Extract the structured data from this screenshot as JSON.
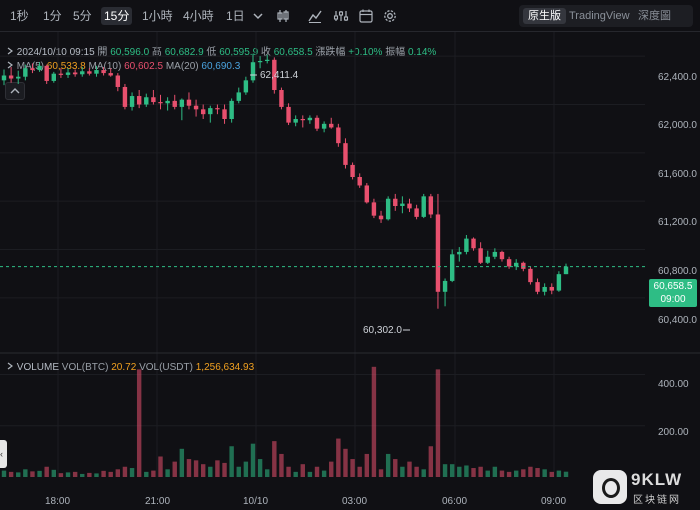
{
  "toolbar": {
    "timeframes": [
      {
        "label": "1秒",
        "active": false
      },
      {
        "label": "1分",
        "active": false
      },
      {
        "label": "5分",
        "active": false
      },
      {
        "label": "15分",
        "active": true
      },
      {
        "label": "1小時",
        "active": false
      },
      {
        "label": "4小時",
        "active": false
      },
      {
        "label": "1日",
        "active": false
      }
    ],
    "tools": [
      "chevron-down-icon",
      "candlestick-type-icon",
      "indicator-icon",
      "settings-sliders-icon",
      "calendar-icon",
      "gear-icon"
    ],
    "views": [
      {
        "label": "原生版",
        "active": true
      },
      {
        "label": "TradingView",
        "active": false
      },
      {
        "label": "深度圖",
        "active": false
      }
    ]
  },
  "info": {
    "datetime": "2024/10/10 09:15",
    "open_label": "開",
    "open": "60,596.0",
    "high_label": "高",
    "high": "60,682.9",
    "low_label": "低",
    "low": "60,595.9",
    "close_label": "收",
    "close": "60,658.5",
    "change_label": "漲跌幅",
    "change": "+0.10%",
    "amplitude_label": "振幅",
    "amplitude": "0.14%"
  },
  "ma": {
    "ma5_label": "MA(5)",
    "ma5": "60,533.8",
    "ma10_label": "MA(10)",
    "ma10": "60,602.5",
    "ma20_label": "MA(20)",
    "ma20": "60,690.3"
  },
  "volume_info": {
    "title": "VOLUME",
    "btc_label": "VOL(BTC)",
    "btc": "20.72",
    "usdt_label": "VOL(USDT)",
    "usdt": "1,256,634.93"
  },
  "annotations": {
    "high": "62,411.4",
    "low": "60,302.0"
  },
  "current_price": {
    "value": "60,658.5",
    "countdown": "09:00"
  },
  "price_axis": [
    "62,400.0",
    "62,000.0",
    "61,600.0",
    "61,200.0",
    "60,800.0",
    "60,400.0"
  ],
  "volume_axis": [
    "400.00",
    "200.00"
  ],
  "time_axis": [
    "18:00",
    "21:00",
    "10/10",
    "03:00",
    "06:00",
    "09:00"
  ],
  "watermark": {
    "title": "9KLW",
    "subtitle": "区块链网"
  },
  "colors": {
    "up": "#2ebd85",
    "down": "#e8506e",
    "background": "#101014",
    "ma5": "#f0a020",
    "ma10": "#e8506e",
    "ma20": "#4aa3df"
  },
  "chart_data": {
    "type": "candlestick",
    "timeframe": "15分",
    "price_ylim": [
      60200,
      62600
    ],
    "volume_ylim": [
      0,
      480
    ],
    "x_ticks": [
      "18:00",
      "21:00",
      "10/10",
      "03:00",
      "06:00",
      "09:00"
    ],
    "candles": [
      {
        "o": 62200,
        "h": 62290,
        "l": 62160,
        "c": 62240,
        "v": 25
      },
      {
        "o": 62240,
        "h": 62310,
        "l": 62180,
        "c": 62215,
        "v": 20
      },
      {
        "o": 62215,
        "h": 62280,
        "l": 62170,
        "c": 62230,
        "v": 18
      },
      {
        "o": 62230,
        "h": 62330,
        "l": 62200,
        "c": 62300,
        "v": 30
      },
      {
        "o": 62300,
        "h": 62340,
        "l": 62260,
        "c": 62285,
        "v": 22
      },
      {
        "o": 62285,
        "h": 62350,
        "l": 62270,
        "c": 62320,
        "v": 24
      },
      {
        "o": 62320,
        "h": 62330,
        "l": 62170,
        "c": 62195,
        "v": 40
      },
      {
        "o": 62195,
        "h": 62270,
        "l": 62180,
        "c": 62255,
        "v": 28
      },
      {
        "o": 62255,
        "h": 62300,
        "l": 62220,
        "c": 62245,
        "v": 15
      },
      {
        "o": 62245,
        "h": 62300,
        "l": 62220,
        "c": 62265,
        "v": 18
      },
      {
        "o": 62265,
        "h": 62290,
        "l": 62230,
        "c": 62250,
        "v": 20
      },
      {
        "o": 62250,
        "h": 62310,
        "l": 62230,
        "c": 62275,
        "v": 12
      },
      {
        "o": 62275,
        "h": 62300,
        "l": 62240,
        "c": 62255,
        "v": 16
      },
      {
        "o": 62255,
        "h": 62320,
        "l": 62230,
        "c": 62285,
        "v": 14
      },
      {
        "o": 62285,
        "h": 62310,
        "l": 62240,
        "c": 62260,
        "v": 24
      },
      {
        "o": 62260,
        "h": 62300,
        "l": 62230,
        "c": 62240,
        "v": 20
      },
      {
        "o": 62240,
        "h": 62260,
        "l": 62110,
        "c": 62145,
        "v": 30
      },
      {
        "o": 62145,
        "h": 62170,
        "l": 61960,
        "c": 61980,
        "v": 40
      },
      {
        "o": 61980,
        "h": 62100,
        "l": 61950,
        "c": 62070,
        "v": 35
      },
      {
        "o": 62070,
        "h": 62120,
        "l": 61970,
        "c": 62000,
        "v": 420
      },
      {
        "o": 62000,
        "h": 62090,
        "l": 61980,
        "c": 62060,
        "v": 20
      },
      {
        "o": 62060,
        "h": 62120,
        "l": 62000,
        "c": 62020,
        "v": 25
      },
      {
        "o": 62020,
        "h": 62080,
        "l": 61960,
        "c": 62010,
        "v": 80
      },
      {
        "o": 62010,
        "h": 62060,
        "l": 61950,
        "c": 62030,
        "v": 30
      },
      {
        "o": 62030,
        "h": 62080,
        "l": 61960,
        "c": 61980,
        "v": 60
      },
      {
        "o": 61980,
        "h": 62050,
        "l": 61870,
        "c": 62040,
        "v": 110
      },
      {
        "o": 62040,
        "h": 62100,
        "l": 61960,
        "c": 61990,
        "v": 70
      },
      {
        "o": 61990,
        "h": 62040,
        "l": 61900,
        "c": 61960,
        "v": 65
      },
      {
        "o": 61960,
        "h": 62000,
        "l": 61880,
        "c": 61920,
        "v": 50
      },
      {
        "o": 61920,
        "h": 61990,
        "l": 61850,
        "c": 61970,
        "v": 40
      },
      {
        "o": 61970,
        "h": 62000,
        "l": 61920,
        "c": 61960,
        "v": 65
      },
      {
        "o": 61960,
        "h": 62000,
        "l": 61840,
        "c": 61880,
        "v": 55
      },
      {
        "o": 61880,
        "h": 62050,
        "l": 61850,
        "c": 62030,
        "v": 120
      },
      {
        "o": 62030,
        "h": 62140,
        "l": 62010,
        "c": 62100,
        "v": 40
      },
      {
        "o": 62100,
        "h": 62230,
        "l": 62080,
        "c": 62200,
        "v": 60
      },
      {
        "o": 62200,
        "h": 62420,
        "l": 62180,
        "c": 62350,
        "v": 130
      },
      {
        "o": 62350,
        "h": 62400,
        "l": 62300,
        "c": 62360,
        "v": 70
      },
      {
        "o": 62360,
        "h": 62412,
        "l": 62340,
        "c": 62370,
        "v": 30
      },
      {
        "o": 62370,
        "h": 62390,
        "l": 62090,
        "c": 62120,
        "v": 140
      },
      {
        "o": 62120,
        "h": 62140,
        "l": 61960,
        "c": 61980,
        "v": 90
      },
      {
        "o": 61980,
        "h": 62010,
        "l": 61830,
        "c": 61850,
        "v": 40
      },
      {
        "o": 61850,
        "h": 61910,
        "l": 61820,
        "c": 61880,
        "v": 20
      },
      {
        "o": 61880,
        "h": 61910,
        "l": 61810,
        "c": 61870,
        "v": 50
      },
      {
        "o": 61870,
        "h": 61910,
        "l": 61840,
        "c": 61890,
        "v": 20
      },
      {
        "o": 61890,
        "h": 61910,
        "l": 61780,
        "c": 61800,
        "v": 40
      },
      {
        "o": 61800,
        "h": 61860,
        "l": 61770,
        "c": 61840,
        "v": 25
      },
      {
        "o": 61840,
        "h": 61890,
        "l": 61800,
        "c": 61810,
        "v": 60
      },
      {
        "o": 61810,
        "h": 61840,
        "l": 61650,
        "c": 61680,
        "v": 150
      },
      {
        "o": 61680,
        "h": 61720,
        "l": 61470,
        "c": 61500,
        "v": 110
      },
      {
        "o": 61500,
        "h": 61520,
        "l": 61380,
        "c": 61400,
        "v": 70
      },
      {
        "o": 61400,
        "h": 61430,
        "l": 61310,
        "c": 61330,
        "v": 40
      },
      {
        "o": 61330,
        "h": 61350,
        "l": 61180,
        "c": 61190,
        "v": 90
      },
      {
        "o": 61190,
        "h": 61220,
        "l": 61060,
        "c": 61080,
        "v": 430
      },
      {
        "o": 61080,
        "h": 61120,
        "l": 61020,
        "c": 61050,
        "v": 30
      },
      {
        "o": 61050,
        "h": 61240,
        "l": 61040,
        "c": 61220,
        "v": 90
      },
      {
        "o": 61220,
        "h": 61260,
        "l": 61120,
        "c": 61160,
        "v": 70
      },
      {
        "o": 61160,
        "h": 61240,
        "l": 61100,
        "c": 61180,
        "v": 40
      },
      {
        "o": 61180,
        "h": 61220,
        "l": 61110,
        "c": 61140,
        "v": 60
      },
      {
        "o": 61140,
        "h": 61170,
        "l": 61050,
        "c": 61070,
        "v": 40
      },
      {
        "o": 61070,
        "h": 61260,
        "l": 61060,
        "c": 61240,
        "v": 30
      },
      {
        "o": 61240,
        "h": 61260,
        "l": 61060,
        "c": 61090,
        "v": 120
      },
      {
        "o": 61090,
        "h": 61260,
        "l": 60310,
        "c": 60450,
        "v": 420
      },
      {
        "o": 60450,
        "h": 60560,
        "l": 60330,
        "c": 60540,
        "v": 50
      },
      {
        "o": 60540,
        "h": 60800,
        "l": 60530,
        "c": 60760,
        "v": 50
      },
      {
        "o": 60760,
        "h": 60820,
        "l": 60700,
        "c": 60780,
        "v": 40
      },
      {
        "o": 60780,
        "h": 60920,
        "l": 60760,
        "c": 60890,
        "v": 45
      },
      {
        "o": 60890,
        "h": 60900,
        "l": 60790,
        "c": 60810,
        "v": 35
      },
      {
        "o": 60810,
        "h": 60860,
        "l": 60680,
        "c": 60690,
        "v": 40
      },
      {
        "o": 60690,
        "h": 60790,
        "l": 60680,
        "c": 60740,
        "v": 25
      },
      {
        "o": 60740,
        "h": 60810,
        "l": 60720,
        "c": 60780,
        "v": 40
      },
      {
        "o": 60780,
        "h": 60790,
        "l": 60700,
        "c": 60720,
        "v": 25
      },
      {
        "o": 60720,
        "h": 60740,
        "l": 60640,
        "c": 60660,
        "v": 20
      },
      {
        "o": 60660,
        "h": 60720,
        "l": 60630,
        "c": 60690,
        "v": 25
      },
      {
        "o": 60690,
        "h": 60700,
        "l": 60620,
        "c": 60640,
        "v": 30
      },
      {
        "o": 60640,
        "h": 60660,
        "l": 60510,
        "c": 60530,
        "v": 40
      },
      {
        "o": 60530,
        "h": 60560,
        "l": 60430,
        "c": 60450,
        "v": 35
      },
      {
        "o": 60450,
        "h": 60520,
        "l": 60420,
        "c": 60490,
        "v": 30
      },
      {
        "o": 60490,
        "h": 60520,
        "l": 60430,
        "c": 60460,
        "v": 20
      },
      {
        "o": 60460,
        "h": 60620,
        "l": 60450,
        "c": 60596,
        "v": 25
      },
      {
        "o": 60596,
        "h": 60683,
        "l": 60596,
        "c": 60658.5,
        "v": 20.72
      }
    ]
  }
}
